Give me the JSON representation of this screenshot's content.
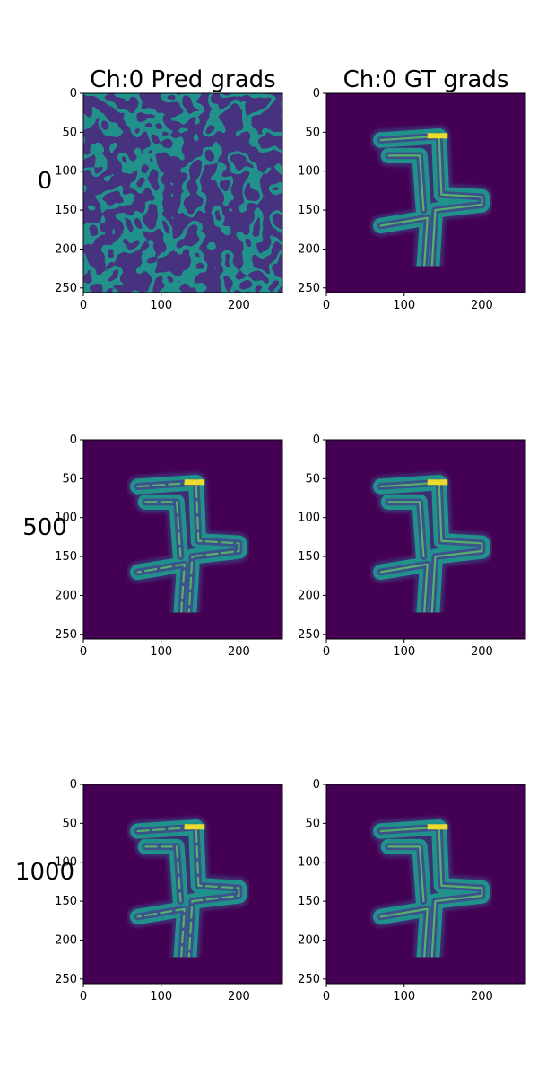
{
  "chart_data": [
    {
      "type": "heatmap",
      "row_label": "0",
      "title": "Ch:0 Pred grads",
      "content": "noise",
      "xticks": [
        0,
        100,
        200
      ],
      "yticks": [
        0,
        50,
        100,
        150,
        200,
        250
      ],
      "xlim": [
        0,
        256
      ],
      "ylim": [
        256,
        0
      ]
    },
    {
      "type": "heatmap",
      "row_label": "",
      "title": "Ch:0 GT grads",
      "content": "glyph",
      "xticks": [
        0,
        100,
        200
      ],
      "yticks": [
        0,
        50,
        100,
        150,
        200,
        250
      ],
      "xlim": [
        0,
        256
      ],
      "ylim": [
        256,
        0
      ]
    },
    {
      "type": "heatmap",
      "row_label": "500",
      "title": "",
      "content": "glyph-partial",
      "xticks": [
        0,
        100,
        200
      ],
      "yticks": [
        0,
        50,
        100,
        150,
        200,
        250
      ],
      "xlim": [
        0,
        256
      ],
      "ylim": [
        256,
        0
      ]
    },
    {
      "type": "heatmap",
      "row_label": "",
      "title": "",
      "content": "glyph",
      "xticks": [
        0,
        100,
        200
      ],
      "yticks": [
        0,
        50,
        100,
        150,
        200,
        250
      ],
      "xlim": [
        0,
        256
      ],
      "ylim": [
        256,
        0
      ]
    },
    {
      "type": "heatmap",
      "row_label": "1000",
      "title": "",
      "content": "glyph-partial",
      "xticks": [
        0,
        100,
        200
      ],
      "yticks": [
        0,
        50,
        100,
        150,
        200,
        250
      ],
      "xlim": [
        0,
        256
      ],
      "ylim": [
        256,
        0
      ]
    },
    {
      "type": "heatmap",
      "row_label": "",
      "title": "",
      "content": "glyph",
      "xticks": [
        0,
        100,
        200
      ],
      "yticks": [
        0,
        50,
        100,
        150,
        200,
        250
      ],
      "xlim": [
        0,
        256
      ],
      "ylim": [
        256,
        0
      ]
    }
  ],
  "colors": {
    "background": "#440154",
    "low": "#3b528b",
    "mid": "#21918c",
    "high": "#5ec962",
    "peak": "#fde725"
  }
}
